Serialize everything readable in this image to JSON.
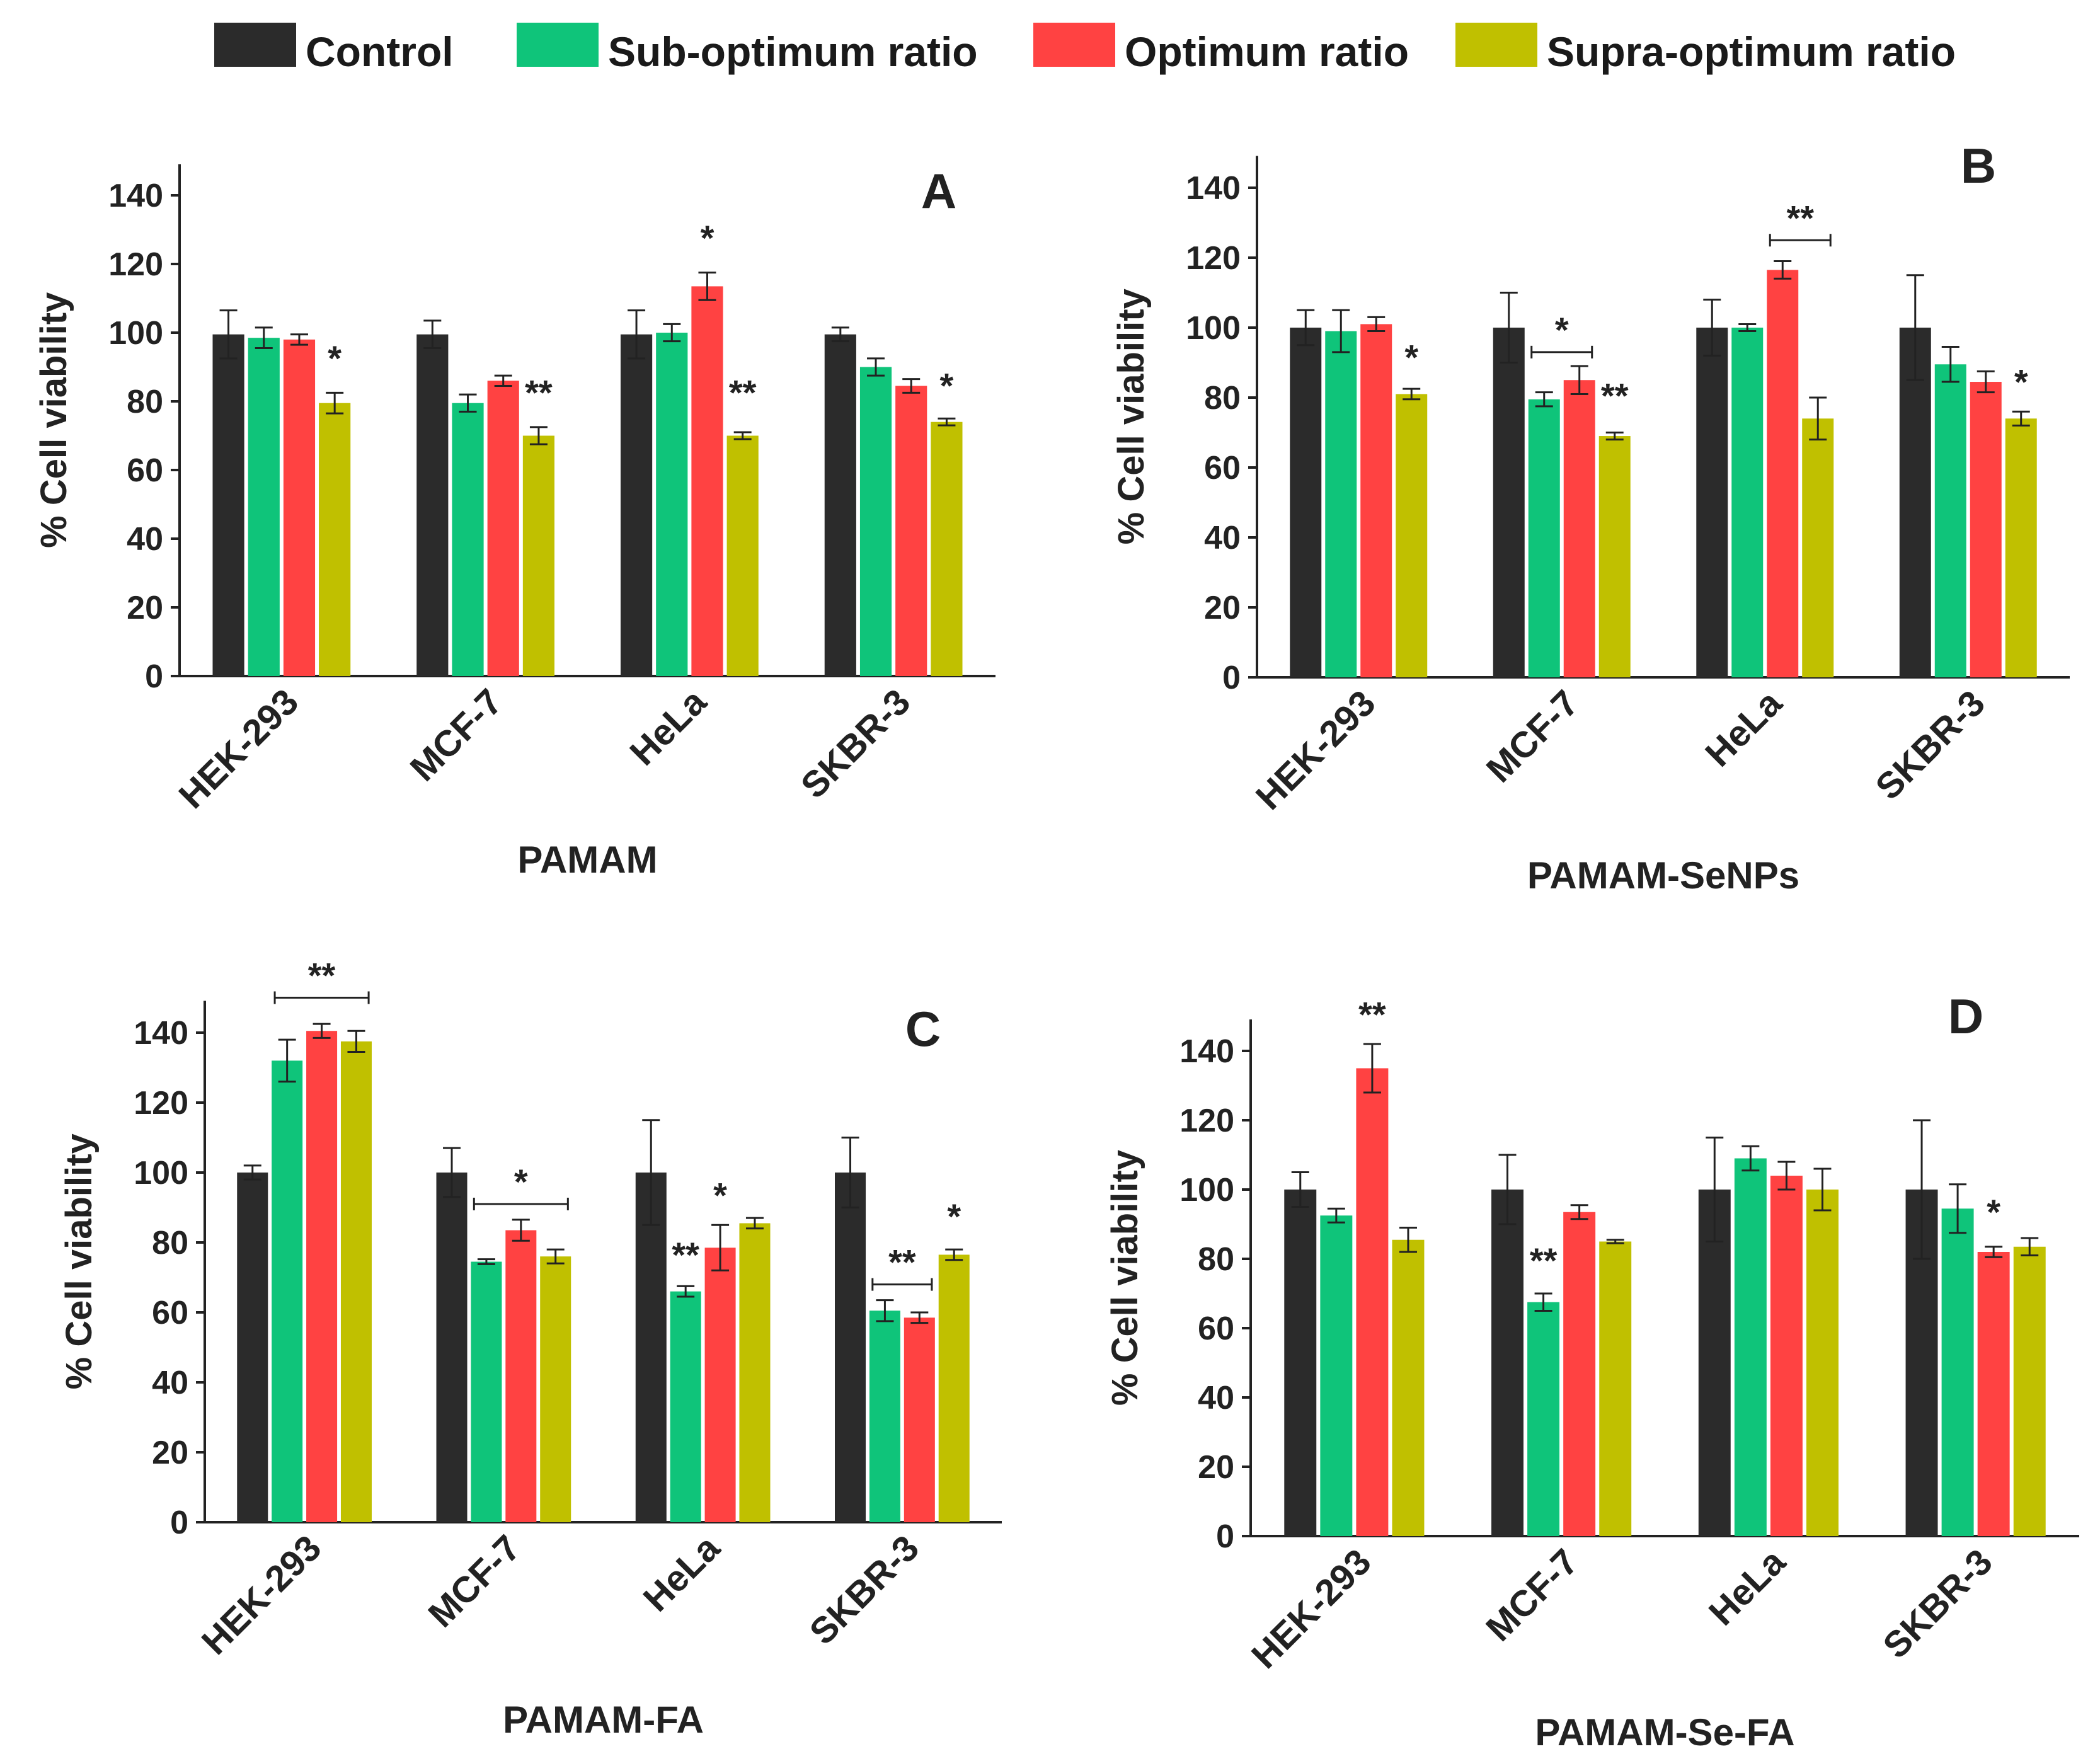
{
  "legend": [
    {
      "label": "Control",
      "color": "#2b2b2b"
    },
    {
      "label": "Sub-optimum ratio",
      "color": "#0fc47a"
    },
    {
      "label": "Optimum ratio",
      "color": "#ff4242"
    },
    {
      "label": "Supra-optimum ratio",
      "color": "#c0c000"
    }
  ],
  "chart_data": [
    {
      "type": "bar",
      "panel_label": "A",
      "title": "",
      "xlabel": "PAMAM",
      "ylabel": "% Cell viability",
      "ylim": [
        0,
        150
      ],
      "yticks": [
        "0",
        "20",
        "40",
        "60",
        "80",
        "100",
        "120",
        "140"
      ],
      "categories": [
        "HEK-293",
        "MCF-7",
        "HeLa",
        "SKBR-3"
      ],
      "series": [
        {
          "name": "Control",
          "values": [
            99.5,
            99.5,
            99.5,
            99.5
          ],
          "errors": [
            7,
            4,
            7,
            2
          ]
        },
        {
          "name": "Sub-optimum ratio",
          "values": [
            98.5,
            79.5,
            100,
            90
          ],
          "errors": [
            3,
            2.5,
            2.5,
            2.5
          ]
        },
        {
          "name": "Optimum ratio",
          "values": [
            98,
            86,
            113.5,
            84.5
          ],
          "errors": [
            1.5,
            1.5,
            4,
            2
          ]
        },
        {
          "name": "Supra-optimum ratio",
          "values": [
            79.5,
            70,
            70,
            74
          ],
          "errors": [
            3,
            2.5,
            1,
            1
          ]
        }
      ],
      "annotations": [
        {
          "text": "*",
          "category": 0,
          "series": 3,
          "value": 89
        },
        {
          "text": "**",
          "category": 1,
          "series": 3,
          "value": 79
        },
        {
          "text": "*",
          "category": 2,
          "series": 2,
          "value": 124
        },
        {
          "text": "**",
          "category": 2,
          "series": 3,
          "value": 79
        },
        {
          "text": "*",
          "category": 3,
          "series": 3,
          "value": 81
        }
      ],
      "brackets": []
    },
    {
      "type": "bar",
      "panel_label": "B",
      "title": "",
      "xlabel": "PAMAM-SeNPs",
      "ylabel": "% Cell viability",
      "ylim": [
        0,
        150
      ],
      "yticks": [
        "0",
        "20",
        "40",
        "60",
        "80",
        "100",
        "120",
        "140"
      ],
      "categories": [
        "HEK-293",
        "MCF-7",
        "HeLa",
        "SKBR-3"
      ],
      "series": [
        {
          "name": "Control",
          "values": [
            100,
            100,
            100,
            100
          ],
          "errors": [
            5,
            10,
            8,
            15
          ]
        },
        {
          "name": "Sub-optimum ratio",
          "values": [
            99,
            79.5,
            100,
            89.5
          ],
          "errors": [
            6,
            2,
            1,
            5
          ]
        },
        {
          "name": "Optimum ratio",
          "values": [
            101,
            85,
            116.5,
            84.5
          ],
          "errors": [
            2,
            4,
            2.5,
            3
          ]
        },
        {
          "name": "Supra-optimum ratio",
          "values": [
            81,
            69,
            74,
            74
          ],
          "errors": [
            1.5,
            1,
            6,
            2
          ]
        }
      ],
      "annotations": [
        {
          "text": "*",
          "category": 0,
          "series": 3,
          "value": 88
        },
        {
          "text": "**",
          "category": 1,
          "series": 3,
          "value": 77
        },
        {
          "text": "*",
          "category": 3,
          "series": 3,
          "value": 81
        }
      ],
      "brackets": [
        {
          "category": 1,
          "from_series": 1,
          "to_series": 2,
          "value": 93,
          "label": "*"
        },
        {
          "category": 2,
          "from_series": 2,
          "to_series": 3,
          "value": 125,
          "label": "**"
        }
      ]
    },
    {
      "type": "bar",
      "panel_label": "C",
      "title": "",
      "xlabel": "PAMAM-FA",
      "ylabel": "% Cell viability",
      "ylim": [
        0,
        150
      ],
      "yticks": [
        "0",
        "20",
        "40",
        "60",
        "80",
        "100",
        "120",
        "140"
      ],
      "categories": [
        "HEK-293",
        "MCF-7",
        "HeLa",
        "SKBR-3"
      ],
      "series": [
        {
          "name": "Control",
          "values": [
            100,
            100,
            100,
            100
          ],
          "errors": [
            2,
            7,
            15,
            10
          ]
        },
        {
          "name": "Sub-optimum ratio",
          "values": [
            132,
            74.5,
            66,
            60.5
          ],
          "errors": [
            6,
            0.7,
            1.5,
            3
          ]
        },
        {
          "name": "Optimum ratio",
          "values": [
            140.5,
            83.5,
            78.5,
            58.5
          ],
          "errors": [
            2,
            3,
            6.5,
            1.5
          ]
        },
        {
          "name": "Supra-optimum ratio",
          "values": [
            137.5,
            76,
            85.5,
            76.5
          ],
          "errors": [
            3,
            2,
            1.5,
            1.5
          ]
        }
      ],
      "annotations": [
        {
          "text": "**",
          "category": 2,
          "series": 1,
          "value": 73
        },
        {
          "text": "*",
          "category": 2,
          "series": 2,
          "value": 90
        },
        {
          "text": "*",
          "category": 3,
          "series": 3,
          "value": 84
        }
      ],
      "brackets": [
        {
          "category": 0,
          "from_series": 1,
          "to_series": 3,
          "value": 150,
          "label": "**"
        },
        {
          "category": 1,
          "from_series": 1,
          "to_series": 3,
          "value": 91,
          "label": "*"
        },
        {
          "category": 3,
          "from_series": 1,
          "to_series": 2,
          "value": 68,
          "label": "**"
        }
      ]
    },
    {
      "type": "bar",
      "panel_label": "D",
      "title": "",
      "xlabel": "PAMAM-Se-FA",
      "ylabel": "% Cell viability",
      "ylim": [
        0,
        150
      ],
      "yticks": [
        "0",
        "20",
        "40",
        "60",
        "80",
        "100",
        "120",
        "140"
      ],
      "categories": [
        "HEK-293",
        "MCF-7",
        "HeLa",
        "SKBR-3"
      ],
      "series": [
        {
          "name": "Control",
          "values": [
            100,
            100,
            100,
            100
          ],
          "errors": [
            5,
            10,
            15,
            20
          ]
        },
        {
          "name": "Sub-optimum ratio",
          "values": [
            92.5,
            67.5,
            109,
            94.5
          ],
          "errors": [
            2,
            2.5,
            3.5,
            7
          ]
        },
        {
          "name": "Optimum ratio",
          "values": [
            135,
            93.5,
            104,
            82
          ],
          "errors": [
            7,
            2,
            4,
            1.5
          ]
        },
        {
          "name": "Supra-optimum ratio",
          "values": [
            85.5,
            85,
            100,
            83.5
          ],
          "errors": [
            3.5,
            0.5,
            6,
            2.5
          ]
        }
      ],
      "annotations": [
        {
          "text": "**",
          "category": 0,
          "series": 2,
          "value": 147
        },
        {
          "text": "**",
          "category": 1,
          "series": 1,
          "value": 76
        },
        {
          "text": "*",
          "category": 3,
          "series": 2,
          "value": 90
        }
      ],
      "brackets": []
    }
  ]
}
